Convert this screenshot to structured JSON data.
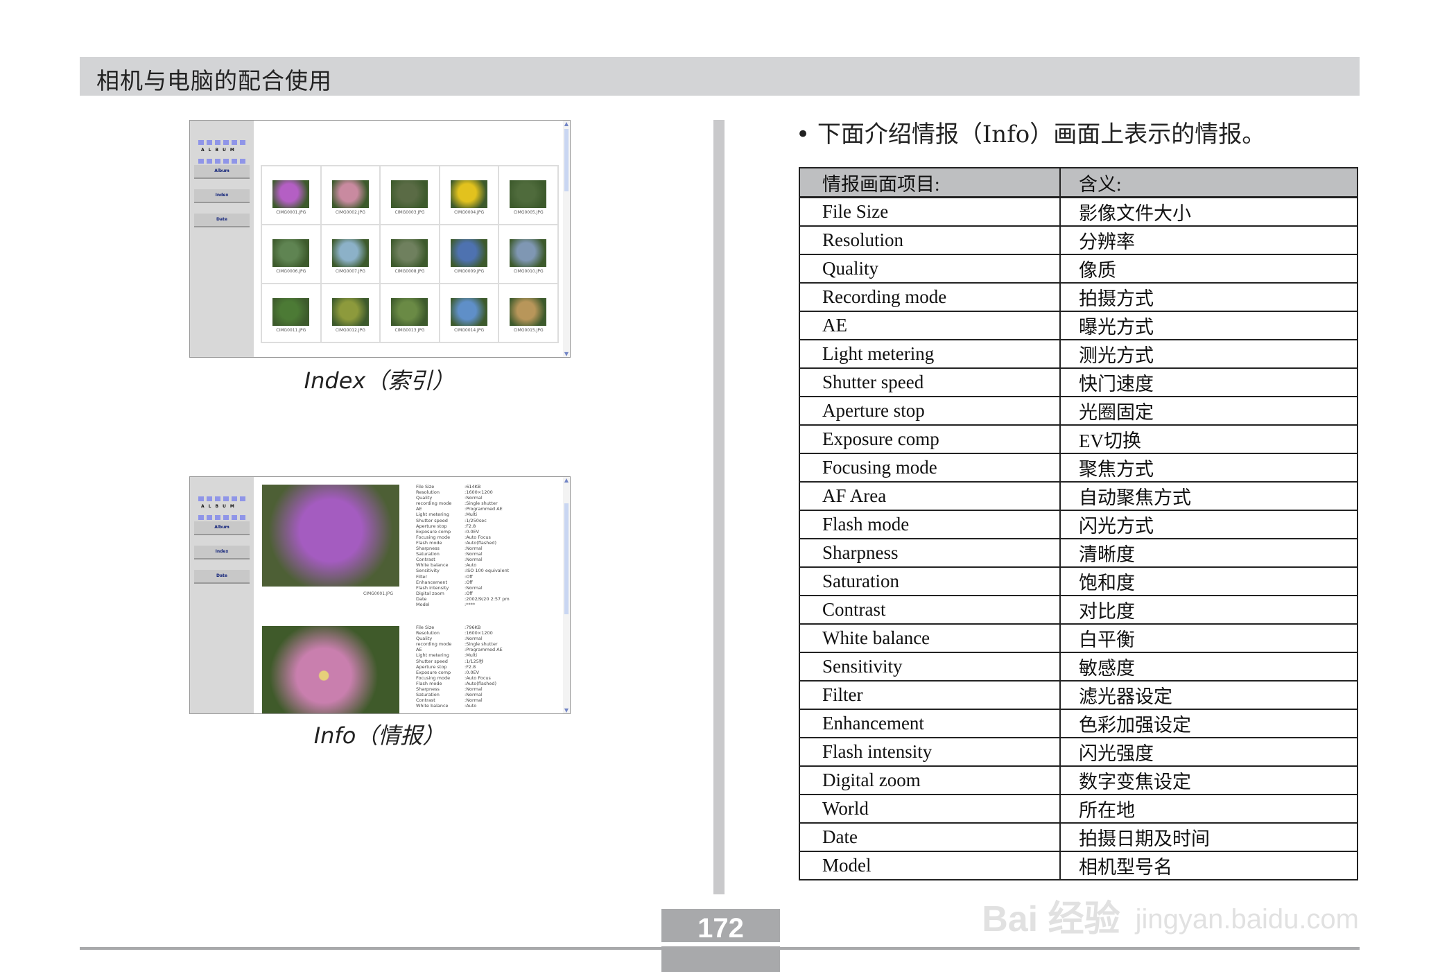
{
  "header": {
    "title": "相机与电脑的配合使用"
  },
  "album": {
    "logo_text": "ALBUM",
    "nav": [
      "Album",
      "Index",
      "Date"
    ],
    "thumbnails": [
      {
        "file": "CIMG0001.JPG",
        "color": "#b45fc4"
      },
      {
        "file": "CIMG0002.JPG",
        "color": "#c98aa0"
      },
      {
        "file": "CIMG0003.JPG",
        "color": "#5a6b45"
      },
      {
        "file": "CIMG0004.JPG",
        "color": "#e2c21e"
      },
      {
        "file": "CIMG0005.JPG",
        "color": "#4f6b3c"
      },
      {
        "file": "CIMG0006.JPG",
        "color": "#5f8452"
      },
      {
        "file": "CIMG0007.JPG",
        "color": "#8cb1c8"
      },
      {
        "file": "CIMG0008.JPG",
        "color": "#6f805e"
      },
      {
        "file": "CIMG0009.JPG",
        "color": "#4e72b0"
      },
      {
        "file": "CIMG0010.JPG",
        "color": "#7f97b3"
      },
      {
        "file": "CIMG0011.JPG",
        "color": "#4c7a35"
      },
      {
        "file": "CIMG0012.JPG",
        "color": "#8d9a3c"
      },
      {
        "file": "CIMG0013.JPG",
        "color": "#6a8a45"
      },
      {
        "file": "CIMG0014.JPG",
        "color": "#5f8fc8"
      },
      {
        "file": "CIMG0015.JPG",
        "color": "#b8965a"
      }
    ],
    "info_photo1": {
      "file": "CIMG0001.JPG",
      "color": "#a45cc0",
      "rows": [
        [
          "File Size",
          ":614KB"
        ],
        [
          "Resolution",
          ":1600×1200"
        ],
        [
          "Quality",
          ":Normal"
        ],
        [
          "recording mode",
          ":Single shutter"
        ],
        [
          "AE",
          ":Programmed AE"
        ],
        [
          "Light metering",
          ":Multi"
        ],
        [
          "Shutter speed",
          ":1/250sec"
        ],
        [
          "Aperture stop",
          ":F2.8"
        ],
        [
          "Exposure comp",
          ":0.0EV"
        ],
        [
          "Focusing mode",
          ":Auto Focus"
        ],
        [
          "Flash mode",
          ":Auto(flashed)"
        ],
        [
          "Sharpness",
          ":Normal"
        ],
        [
          "Saturation",
          ":Normal"
        ],
        [
          "Contrast",
          ":Normal"
        ],
        [
          "White balance",
          ":Auto"
        ],
        [
          "Sensitivity",
          ":ISO 100 equivalent"
        ],
        [
          "Filter",
          ":Off"
        ],
        [
          "Enhancement",
          ":Off"
        ],
        [
          "Flash intensity",
          ":Normal"
        ],
        [
          "Digital zoom",
          ":Off"
        ],
        [
          "Date",
          ":2002/9/20 2:57 pm"
        ],
        [
          "Model",
          ":****"
        ]
      ]
    },
    "info_photo2": {
      "color": "#c97fae",
      "rows": [
        [
          "File Size",
          ":796KB"
        ],
        [
          "Resolution",
          ":1600×1200"
        ],
        [
          "Quality",
          ":Normal"
        ],
        [
          "recording mode",
          ":Single shutter"
        ],
        [
          "AE",
          ":Programmed AE"
        ],
        [
          "Light metering",
          ":Multi"
        ],
        [
          "Shutter speed",
          ":1/125秒"
        ],
        [
          "Aperture stop",
          ":F2.8"
        ],
        [
          "Exposure comp",
          ":0.0EV"
        ],
        [
          "Focusing mode",
          ":Auto Focus"
        ],
        [
          "Flash mode",
          ":Auto(flashed)"
        ],
        [
          "Sharpness",
          ":Normal"
        ],
        [
          "Saturation",
          ":Normal"
        ],
        [
          "Contrast",
          ":Normal"
        ],
        [
          "White balance",
          ":Auto"
        ]
      ]
    }
  },
  "captions": {
    "index": "Index（索引）",
    "info": "Info（情报）"
  },
  "intro": "• 下面介绍情报（Info）画面上表示的情报。",
  "table": {
    "headers": [
      "情报画面项目:",
      "含义:"
    ],
    "rows": [
      [
        "File Size",
        "影像文件大小"
      ],
      [
        "Resolution",
        "分辨率"
      ],
      [
        "Quality",
        "像质"
      ],
      [
        "Recording mode",
        "拍摄方式"
      ],
      [
        "AE",
        "曝光方式"
      ],
      [
        "Light metering",
        "测光方式"
      ],
      [
        "Shutter speed",
        "快门速度"
      ],
      [
        "Aperture stop",
        "光圈固定"
      ],
      [
        "Exposure comp",
        "EV切换"
      ],
      [
        "Focusing mode",
        "聚焦方式"
      ],
      [
        "AF Area",
        "自动聚焦方式"
      ],
      [
        "Flash mode",
        "闪光方式"
      ],
      [
        "Sharpness",
        "清晰度"
      ],
      [
        "Saturation",
        "饱和度"
      ],
      [
        "Contrast",
        "对比度"
      ],
      [
        "White balance",
        "白平衡"
      ],
      [
        "Sensitivity",
        "敏感度"
      ],
      [
        "Filter",
        "滤光器设定"
      ],
      [
        "Enhancement",
        "色彩加强设定"
      ],
      [
        "Flash intensity",
        "闪光强度"
      ],
      [
        "Digital zoom",
        "数字变焦设定"
      ],
      [
        "World",
        "所在地"
      ],
      [
        "Date",
        "拍摄日期及时间"
      ],
      [
        "Model",
        "相机型号名"
      ]
    ]
  },
  "page_number": "172",
  "watermark": {
    "line1": "Bai 经验",
    "line2": "jingyan.baidu.com"
  }
}
